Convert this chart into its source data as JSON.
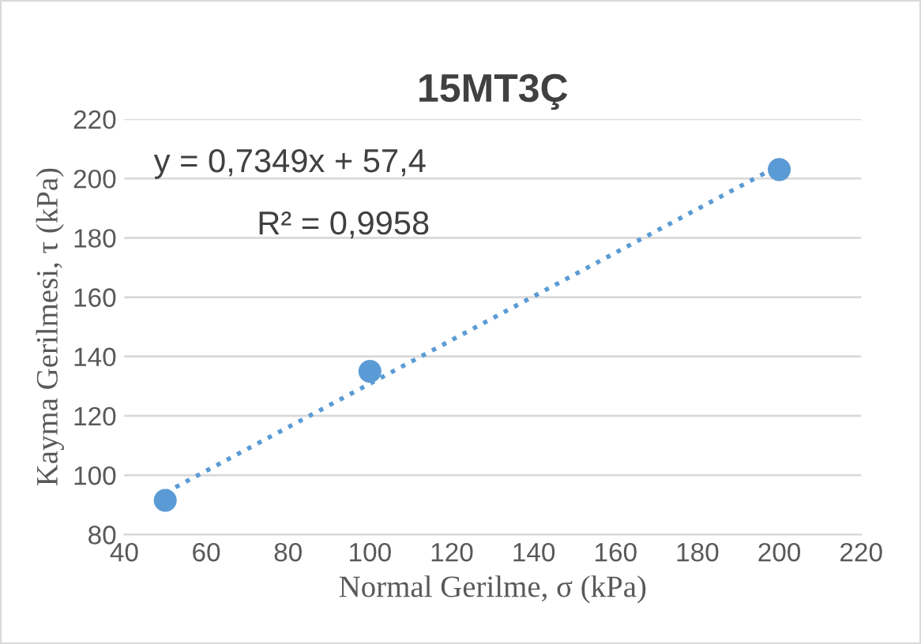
{
  "chart_data": {
    "type": "scatter",
    "title": "15MT3Ç",
    "xlabel": "Normal Gerilme, σ (kPa)",
    "ylabel": "Kayma Gerilmesi, τ (kPa)",
    "annotations": [
      "y = 0,7349x + 57,4",
      "R² = 0,9958"
    ],
    "x": [
      50,
      100,
      200
    ],
    "series": [
      {
        "color": "#5b9bd5",
        "values": [
          91.5,
          135,
          203
        ],
        "marker": "circle"
      },
      {
        "type": "line",
        "color": "#5b9bd5",
        "x": [
          50,
          200
        ],
        "values": [
          94.1,
          204.4
        ],
        "line_style": "dotted",
        "marker": "none"
      }
    ],
    "xlim": [
      40,
      220
    ],
    "xticks": [
      40,
      60,
      80,
      100,
      120,
      140,
      160,
      180,
      200,
      220
    ],
    "ylim": [
      80,
      220
    ],
    "yticks": [
      80,
      100,
      120,
      140,
      160,
      180,
      200,
      220
    ],
    "grid": "y",
    "legend": false
  }
}
